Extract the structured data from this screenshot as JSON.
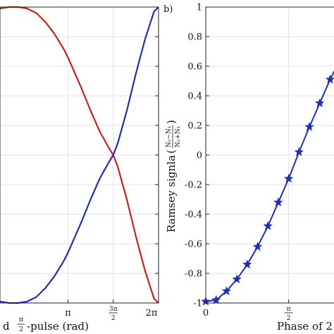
{
  "chart_data": [
    {
      "type": "line",
      "panel_label": "",
      "xlabel": "d π/2-pulse (rad)",
      "xlabel_parts": {
        "prefix": "d ",
        "frac_num": "π",
        "frac_den": "2",
        "suffix": "-pulse (rad)"
      },
      "ylabel": "",
      "xlim": [
        0.25,
        2.0
      ],
      "ylim": [
        -1.0,
        1.0
      ],
      "x_units": "multiples of π",
      "grid": true,
      "x_ticks": [
        {
          "value": 1.0,
          "label": "π",
          "frac": false
        },
        {
          "value": 1.5,
          "label": "3π/2",
          "num": "3π",
          "den": "2",
          "frac": true
        },
        {
          "value": 2.0,
          "label": "2π",
          "frac": false
        }
      ],
      "series": [
        {
          "color": "#cc1f1f",
          "x": [
            0.25,
            0.35,
            0.45,
            0.55,
            0.65,
            0.75,
            0.85,
            0.95,
            1.0,
            1.05,
            1.15,
            1.25,
            1.35,
            1.45,
            1.5,
            1.55,
            1.65,
            1.75,
            1.85,
            1.95,
            2.0
          ],
          "y": [
            0.99,
            1.0,
            1.0,
            0.99,
            0.96,
            0.9,
            0.82,
            0.72,
            0.66,
            0.59,
            0.45,
            0.3,
            0.16,
            0.05,
            0.0,
            -0.08,
            -0.3,
            -0.55,
            -0.78,
            -0.97,
            -1.0
          ]
        },
        {
          "color": "#1f2fb0",
          "x": [
            0.25,
            0.35,
            0.45,
            0.55,
            0.65,
            0.75,
            0.85,
            0.95,
            1.0,
            1.05,
            1.15,
            1.25,
            1.35,
            1.45,
            1.5,
            1.55,
            1.65,
            1.75,
            1.85,
            1.95,
            2.0
          ],
          "y": [
            -0.99,
            -1.0,
            -1.0,
            -0.99,
            -0.96,
            -0.9,
            -0.82,
            -0.72,
            -0.66,
            -0.59,
            -0.45,
            -0.3,
            -0.16,
            -0.05,
            0.0,
            0.08,
            0.3,
            0.55,
            0.78,
            0.97,
            1.0
          ]
        }
      ]
    },
    {
      "type": "line",
      "panel_label": "b)",
      "xlabel": "Phase of 2",
      "ylabel": "Ramsey signla ((N2−N1)/(N2+N1))",
      "ylabel_parts": {
        "prefix": "Ramsey signla ",
        "frac_num": "N₂−N₁",
        "frac_den": "N₂+N₁"
      },
      "xlim": [
        0,
        0.85
      ],
      "ylim": [
        -1.0,
        1.0
      ],
      "x_units": "multiples of π",
      "grid": true,
      "y_ticks": [
        -1,
        -0.8,
        -0.6,
        -0.4,
        -0.2,
        0,
        0.2,
        0.4,
        0.6,
        0.8,
        1
      ],
      "y_tick_labels": [
        "-1",
        "-0.8",
        "-0.6",
        "-0.4",
        "-0.2",
        "0",
        "0.2",
        "0.4",
        "0.6",
        "0.8",
        "1"
      ],
      "x_ticks": [
        {
          "value": 0,
          "label": "0",
          "frac": false
        },
        {
          "value": 0.5,
          "label": "π/2",
          "num": "π",
          "den": "2",
          "frac": true
        }
      ],
      "series": [
        {
          "color": "#1f2fb0",
          "marker": "star",
          "x": [
            0.0,
            0.0625,
            0.125,
            0.1875,
            0.25,
            0.3125,
            0.375,
            0.4375,
            0.5,
            0.5625,
            0.625,
            0.6875,
            0.75,
            0.8125,
            0.85
          ],
          "y": [
            -0.99,
            -0.98,
            -0.92,
            -0.84,
            -0.74,
            -0.62,
            -0.48,
            -0.32,
            -0.16,
            0.02,
            0.19,
            0.35,
            0.51,
            0.65,
            0.76
          ]
        }
      ]
    }
  ]
}
